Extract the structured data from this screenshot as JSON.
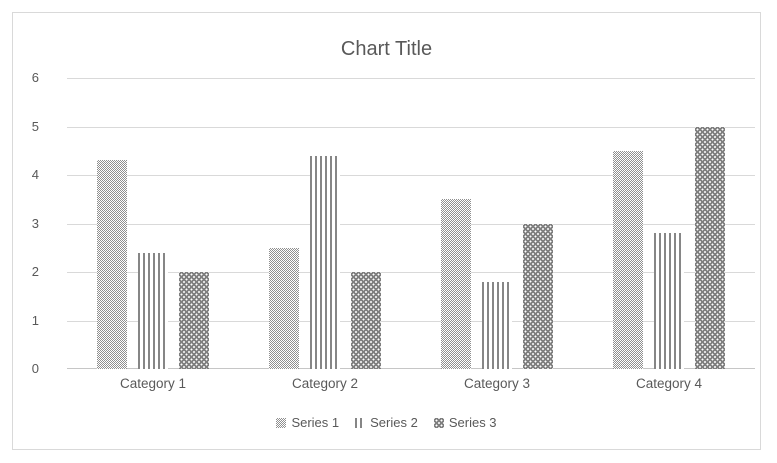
{
  "chart_data": {
    "type": "bar",
    "title": "Chart Title",
    "categories": [
      "Category 1",
      "Category 2",
      "Category 3",
      "Category 4"
    ],
    "series": [
      {
        "name": "Series 1",
        "pattern": "fine-checker",
        "values": [
          4.3,
          2.5,
          3.5,
          4.5
        ]
      },
      {
        "name": "Series 2",
        "pattern": "vertical-stripes",
        "values": [
          2.4,
          4.4,
          1.8,
          2.8
        ]
      },
      {
        "name": "Series 3",
        "pattern": "dotted-diamond",
        "values": [
          2,
          2,
          3,
          5
        ]
      }
    ],
    "xlabel": "",
    "ylabel": "",
    "ylim": [
      0,
      6
    ],
    "yticks": [
      0,
      1,
      2,
      3,
      4,
      5,
      6
    ],
    "grid": true,
    "legend_position": "bottom",
    "colors": {
      "text": "#595959",
      "gridline": "#d9d9d9",
      "axis_line": "#c6c6c6",
      "frame_border": "#d9d9d9",
      "pattern_gray": "#808080",
      "background": "#ffffff"
    }
  }
}
